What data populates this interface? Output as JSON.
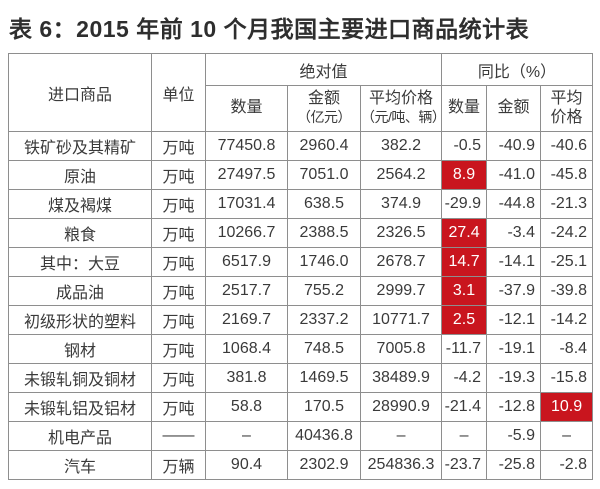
{
  "title": "表 6：2015 年前 10 个月我国主要进口商品统计表",
  "colors": {
    "highlight_red": "#c9151e",
    "border_gray": "#8e8e8e",
    "text_dark": "#3a3a3a"
  },
  "table": {
    "headers": {
      "product": "进口商品",
      "unit": "单位",
      "absolute_group": "绝对值",
      "yoy_group": "同比（%）",
      "abs_quantity": "数量",
      "abs_amount_line1": "金额",
      "abs_amount_line2": "（亿元）",
      "abs_avg_price_line1": "平均价格",
      "abs_avg_price_line2": "（元/吨、辆）",
      "yoy_quantity": "数量",
      "yoy_amount": "金额",
      "yoy_avg_price_line1": "平均",
      "yoy_avg_price_line2": "价格"
    },
    "rows": [
      {
        "product": "铁矿砂及其精矿",
        "unit": "万吨",
        "qty": "77450.8",
        "amount": "2960.4",
        "avg_price": "382.2",
        "yoy_qty": "-0.5",
        "yoy_amount": "-40.9",
        "yoy_avg_price": "-40.6",
        "highlight": []
      },
      {
        "product": "原油",
        "unit": "万吨",
        "qty": "27497.5",
        "amount": "7051.0",
        "avg_price": "2564.2",
        "yoy_qty": "8.9",
        "yoy_amount": "-41.0",
        "yoy_avg_price": "-45.8",
        "highlight": [
          "yoy_qty"
        ]
      },
      {
        "product": "煤及褐煤",
        "unit": "万吨",
        "qty": "17031.4",
        "amount": "638.5",
        "avg_price": "374.9",
        "yoy_qty": "-29.9",
        "yoy_amount": "-44.8",
        "yoy_avg_price": "-21.3",
        "highlight": []
      },
      {
        "product": "粮食",
        "unit": "万吨",
        "qty": "10266.7",
        "amount": "2388.5",
        "avg_price": "2326.5",
        "yoy_qty": "27.4",
        "yoy_amount": "-3.4",
        "yoy_avg_price": "-24.2",
        "highlight": [
          "yoy_qty"
        ]
      },
      {
        "product": "其中：大豆",
        "unit": "万吨",
        "qty": "6517.9",
        "amount": "1746.0",
        "avg_price": "2678.7",
        "yoy_qty": "14.7",
        "yoy_amount": "-14.1",
        "yoy_avg_price": "-25.1",
        "highlight": [
          "yoy_qty"
        ]
      },
      {
        "product": "成品油",
        "unit": "万吨",
        "qty": "2517.7",
        "amount": "755.2",
        "avg_price": "2999.7",
        "yoy_qty": "3.1",
        "yoy_amount": "-37.9",
        "yoy_avg_price": "-39.8",
        "highlight": [
          "yoy_qty"
        ]
      },
      {
        "product": "初级形状的塑料",
        "unit": "万吨",
        "qty": "2169.7",
        "amount": "2337.2",
        "avg_price": "10771.7",
        "yoy_qty": "2.5",
        "yoy_amount": "-12.1",
        "yoy_avg_price": "-14.2",
        "highlight": [
          "yoy_qty"
        ]
      },
      {
        "product": "钢材",
        "unit": "万吨",
        "qty": "1068.4",
        "amount": "748.5",
        "avg_price": "7005.8",
        "yoy_qty": "-11.7",
        "yoy_amount": "-19.1",
        "yoy_avg_price": "-8.4",
        "highlight": []
      },
      {
        "product": "未锻轧铜及铜材",
        "unit": "万吨",
        "qty": "381.8",
        "amount": "1469.5",
        "avg_price": "38489.9",
        "yoy_qty": "-4.2",
        "yoy_amount": "-19.3",
        "yoy_avg_price": "-15.8",
        "highlight": []
      },
      {
        "product": "未锻轧铝及铝材",
        "unit": "万吨",
        "qty": "58.8",
        "amount": "170.5",
        "avg_price": "28990.9",
        "yoy_qty": "-21.4",
        "yoy_amount": "-12.8",
        "yoy_avg_price": "10.9",
        "highlight": [
          "yoy_avg_price"
        ]
      },
      {
        "product": "机电产品",
        "unit": "——",
        "qty": "–",
        "amount": "40436.8",
        "avg_price": "–",
        "yoy_qty": "–",
        "yoy_amount": "-5.9",
        "yoy_avg_price": "–",
        "highlight": []
      },
      {
        "product": "汽车",
        "unit": "万辆",
        "qty": "90.4",
        "amount": "2302.9",
        "avg_price": "254836.3",
        "yoy_qty": "-23.7",
        "yoy_amount": "-25.8",
        "yoy_avg_price": "-2.8",
        "highlight": []
      }
    ]
  }
}
